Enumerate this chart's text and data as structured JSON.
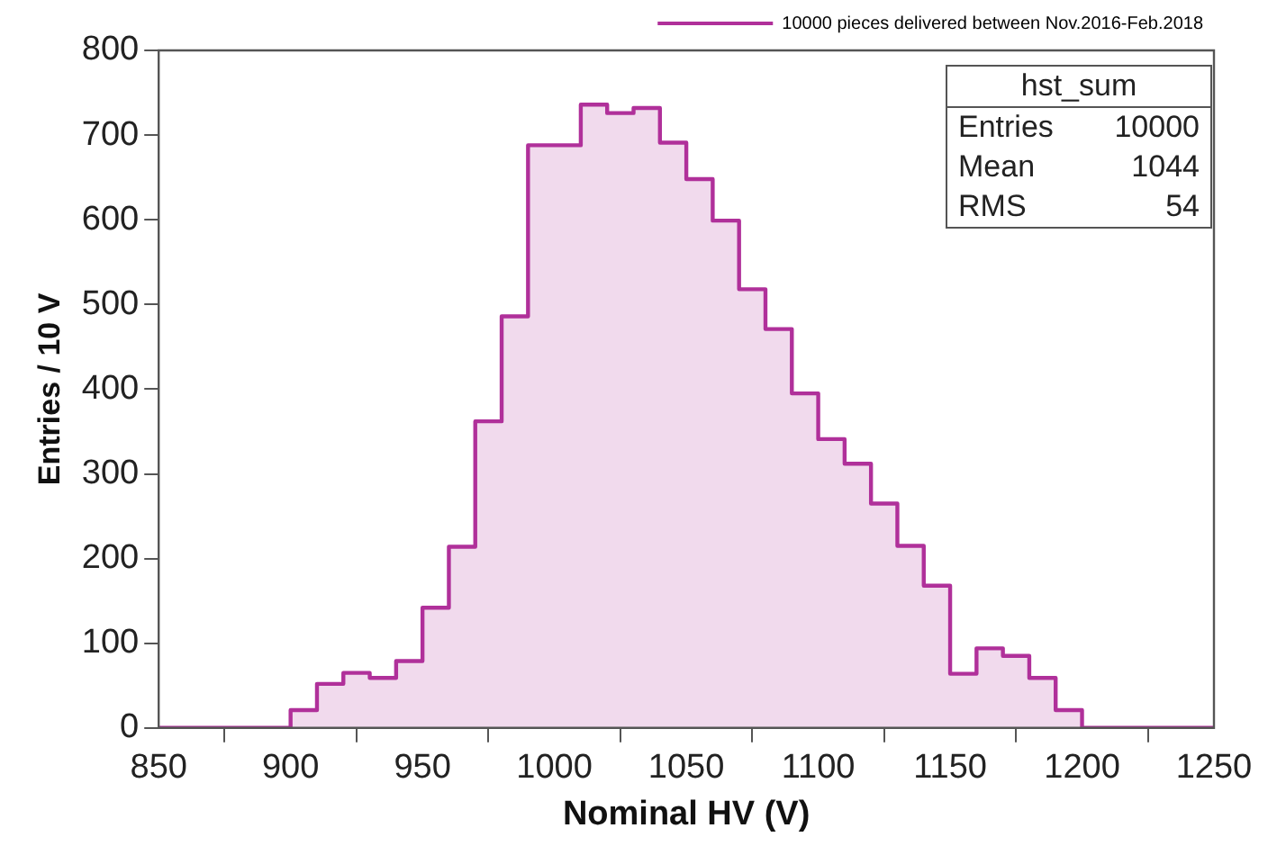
{
  "chart_data": {
    "type": "histogram",
    "xlabel": "Nominal HV (V)",
    "ylabel": "Entries / 10 V",
    "bins": [
      850,
      860,
      870,
      880,
      890,
      900,
      910,
      920,
      930,
      940,
      950,
      960,
      970,
      980,
      990,
      1000,
      1010,
      1020,
      1030,
      1040,
      1050,
      1060,
      1070,
      1080,
      1090,
      1100,
      1110,
      1120,
      1130,
      1140,
      1150,
      1160,
      1170,
      1180,
      1190,
      1200,
      1210,
      1220,
      1230,
      1240,
      1250
    ],
    "series": [
      {
        "name": "10000 pieces delivered between Nov.2016-Feb.2018",
        "color": "#b0309a",
        "values": [
          0,
          0,
          0,
          0,
          0,
          21,
          52,
          65,
          59,
          79,
          142,
          214,
          362,
          486,
          688,
          688,
          736,
          726,
          732,
          691,
          648,
          599,
          518,
          471,
          395,
          341,
          312,
          265,
          215,
          168,
          64,
          94,
          85,
          59,
          21,
          0,
          0,
          0,
          0,
          0
        ]
      }
    ],
    "xlim": [
      850,
      1250
    ],
    "xticks": [
      850,
      900,
      950,
      1000,
      1050,
      1100,
      1150,
      1200,
      1250
    ],
    "ylim": [
      0,
      800
    ],
    "yticks": [
      0,
      100,
      200,
      300,
      400,
      500,
      600,
      700,
      800
    ],
    "grid": false,
    "legend": "top right",
    "annotations": [
      "hst_sum",
      "Entries 10000",
      "Mean 1044",
      "RMS 54"
    ]
  }
}
